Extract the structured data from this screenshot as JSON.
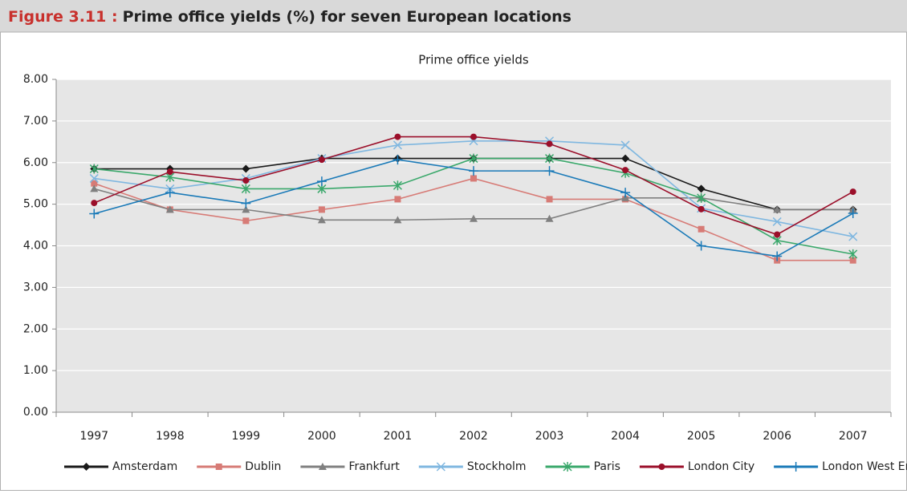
{
  "header": {
    "figure": "Figure 3.11 :",
    "title": "Prime office yields (%) for seven European locations"
  },
  "chart_data": {
    "type": "line",
    "title": "Prime office yields",
    "categories": [
      "1997",
      "1998",
      "1999",
      "2000",
      "2001",
      "2002",
      "2003",
      "2004",
      "2005",
      "2006",
      "2007"
    ],
    "ylim": [
      0,
      8
    ],
    "yticks": [
      {
        "value": 0,
        "label": "0.00"
      },
      {
        "value": 1,
        "label": "1.00"
      },
      {
        "value": 2,
        "label": "2.00"
      },
      {
        "value": 3,
        "label": "3.00"
      },
      {
        "value": 4,
        "label": "4.00"
      },
      {
        "value": 5,
        "label": "5.00"
      },
      {
        "value": 6,
        "label": "6.00"
      },
      {
        "value": 7,
        "label": "7.00"
      },
      {
        "value": 8,
        "label": "8.00"
      }
    ],
    "grid": true,
    "legend": "bottom",
    "series": [
      {
        "name": "Amsterdam",
        "color": "#1a1a1a",
        "marker": "diamond",
        "values": [
          5.85,
          5.85,
          5.85,
          6.1,
          6.1,
          6.1,
          6.1,
          6.1,
          5.37,
          4.87,
          4.87
        ]
      },
      {
        "name": "Dublin",
        "color": "#d77b76",
        "marker": "square",
        "values": [
          5.5,
          4.87,
          4.6,
          4.87,
          5.12,
          5.62,
          5.12,
          5.12,
          4.4,
          3.65,
          3.65
        ]
      },
      {
        "name": "Frankfurt",
        "color": "#808080",
        "marker": "triangle",
        "values": [
          5.37,
          4.87,
          4.87,
          4.62,
          4.62,
          4.65,
          4.65,
          5.15,
          5.15,
          4.87,
          4.87
        ]
      },
      {
        "name": "Stockholm",
        "color": "#7fb7e0",
        "marker": "x",
        "values": [
          5.62,
          5.37,
          5.62,
          6.1,
          6.42,
          6.52,
          6.52,
          6.42,
          4.9,
          4.58,
          4.22
        ]
      },
      {
        "name": "Paris",
        "color": "#3aa86b",
        "marker": "asterisk",
        "values": [
          5.85,
          5.65,
          5.37,
          5.37,
          5.45,
          6.1,
          6.1,
          5.75,
          5.15,
          4.13,
          3.8
        ]
      },
      {
        "name": "London City",
        "color": "#9b0f2a",
        "marker": "circle",
        "values": [
          5.03,
          5.78,
          5.57,
          6.07,
          6.62,
          6.62,
          6.45,
          5.82,
          4.88,
          4.27,
          5.3
        ]
      },
      {
        "name": "London West End",
        "color": "#1a7ab8",
        "marker": "plus",
        "values": [
          4.77,
          5.28,
          5.02,
          5.55,
          6.07,
          5.8,
          5.8,
          5.28,
          4.0,
          3.75,
          4.78
        ]
      }
    ]
  }
}
